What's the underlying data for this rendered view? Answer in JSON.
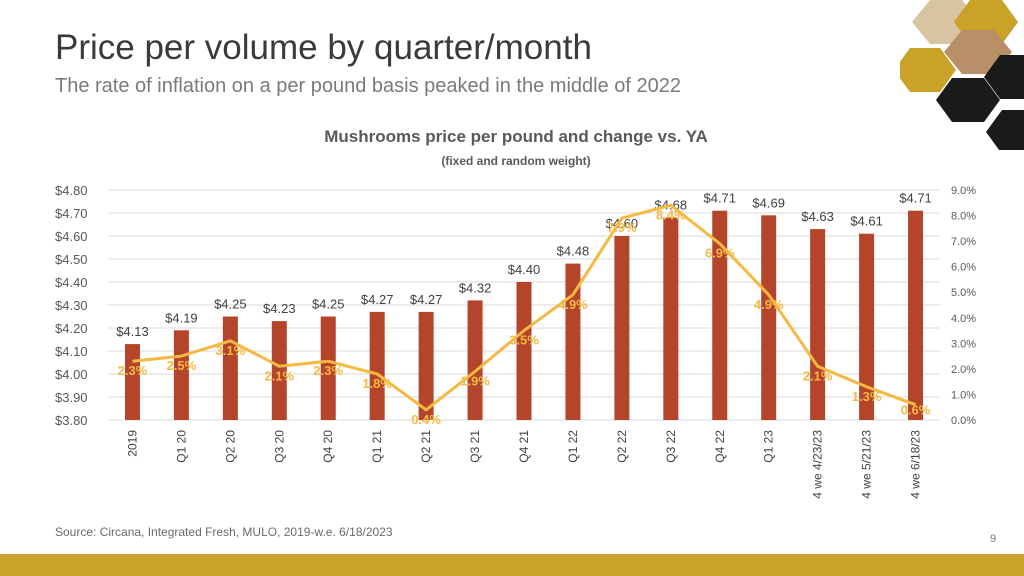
{
  "slide": {
    "title": "Price per volume by quarter/month",
    "subtitle": "The rate of inflation on a per pound basis peaked in the middle of 2022",
    "source": "Source: Circana, Integrated Fresh, MULO, 2019-w.e. 6/18/2023",
    "page_number": "9"
  },
  "colors": {
    "bar": "#b5452a",
    "line": "#f5b942",
    "accent_gold": "#c9a227",
    "hex_dark": "#1a1a1a"
  },
  "chart_data": {
    "type": "bar",
    "title": "Mushrooms price per pound and change vs. YA",
    "subtitle": "(fixed and random weight)",
    "categories": [
      "2019",
      "Q1 20",
      "Q2 20",
      "Q3 20",
      "Q4 20",
      "Q1 21",
      "Q2 21",
      "Q3 21",
      "Q4 21",
      "Q1 22",
      "Q2 22",
      "Q3 22",
      "Q4 22",
      "Q1 23",
      "4 we 4/23/23",
      "4 we 5/21/23",
      "4 we 6/18/23"
    ],
    "series": [
      {
        "name": "Price per pound",
        "kind": "bar",
        "axis": "left",
        "values": [
          4.13,
          4.19,
          4.25,
          4.23,
          4.25,
          4.27,
          4.27,
          4.32,
          4.4,
          4.48,
          4.6,
          4.68,
          4.71,
          4.69,
          4.63,
          4.61,
          4.71
        ],
        "labels": [
          "$4.13",
          "$4.19",
          "$4.25",
          "$4.23",
          "$4.25",
          "$4.27",
          "$4.27",
          "$4.32",
          "$4.40",
          "$4.48",
          "$4.60",
          "$4.68",
          "$4.71",
          "$4.69",
          "$4.63",
          "$4.61",
          "$4.71"
        ]
      },
      {
        "name": "Change vs. YA",
        "kind": "line",
        "axis": "right",
        "values": [
          2.3,
          2.5,
          3.1,
          2.1,
          2.3,
          1.8,
          0.4,
          1.9,
          3.5,
          4.9,
          7.9,
          8.4,
          6.9,
          4.9,
          2.1,
          1.3,
          0.6
        ],
        "labels": [
          "2.3%",
          "2.5%",
          "3.1%",
          "2.1%",
          "2.3%",
          "1.8%",
          "0.4%",
          "1.9%",
          "3.5%",
          "4.9%",
          "7.9%",
          "8.4%",
          "6.9%",
          "4.9%",
          "2.1%",
          "1.3%",
          "0.6%"
        ]
      }
    ],
    "y_left": {
      "range": [
        3.8,
        4.8
      ],
      "ticks": [
        3.8,
        3.9,
        4.0,
        4.1,
        4.2,
        4.3,
        4.4,
        4.5,
        4.6,
        4.7,
        4.8
      ],
      "tick_labels": [
        "$3.80",
        "$3.90",
        "$4.00",
        "$4.10",
        "$4.20",
        "$4.30",
        "$4.40",
        "$4.50",
        "$4.60",
        "$4.70",
        "$4.80"
      ]
    },
    "y_right": {
      "range": [
        0,
        9
      ],
      "ticks": [
        0,
        1,
        2,
        3,
        4,
        5,
        6,
        7,
        8,
        9
      ],
      "tick_labels": [
        "0.0%",
        "1.0%",
        "2.0%",
        "3.0%",
        "4.0%",
        "5.0%",
        "6.0%",
        "7.0%",
        "8.0%",
        "9.0%"
      ]
    },
    "grid": true,
    "legend": "none"
  }
}
